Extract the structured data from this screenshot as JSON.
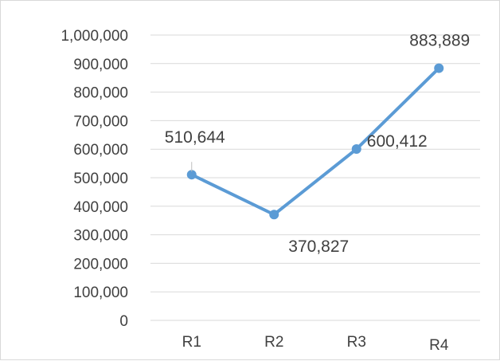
{
  "chart_data": {
    "type": "line",
    "title": "",
    "xlabel": "",
    "ylabel": "",
    "categories": [
      "R1",
      "R2",
      "R3",
      "R4"
    ],
    "y_tick_labels": [
      "0",
      "100,000",
      "200,000",
      "300,000",
      "400,000",
      "500,000",
      "600,000",
      "700,000",
      "800,000",
      "900,000",
      "1,000,000"
    ],
    "ylim": [
      0,
      1000000
    ],
    "grid": true,
    "legend": "none",
    "series": [
      {
        "values": [
          510644,
          370827,
          600412,
          883889
        ],
        "data_labels": [
          "510,644",
          "370,827",
          "600,412",
          "883,889"
        ],
        "color": "#5b9bd5"
      }
    ],
    "colors": {
      "gridline": "#d9d9d9",
      "text": "#404040",
      "frame": "#d9d9d9"
    }
  }
}
